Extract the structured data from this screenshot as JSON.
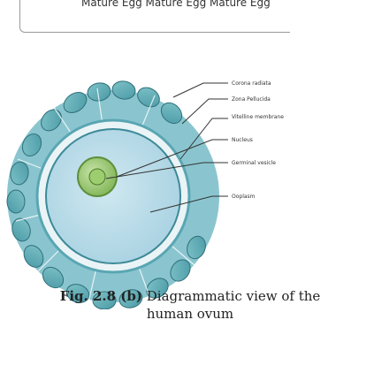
{
  "header": {
    "text": "Mature Egg Mature Egg Mature Egg"
  },
  "diagram": {
    "labels": [
      "Corona radiata",
      "Zona Pellucida",
      "Vitelline membrane",
      "Nucleus",
      "Germinal vesicle",
      "Ooplasm"
    ]
  },
  "caption": {
    "figure_label": "Fig. 2.8 (b)",
    "title": "Diagrammatic view of the human ovum"
  }
}
